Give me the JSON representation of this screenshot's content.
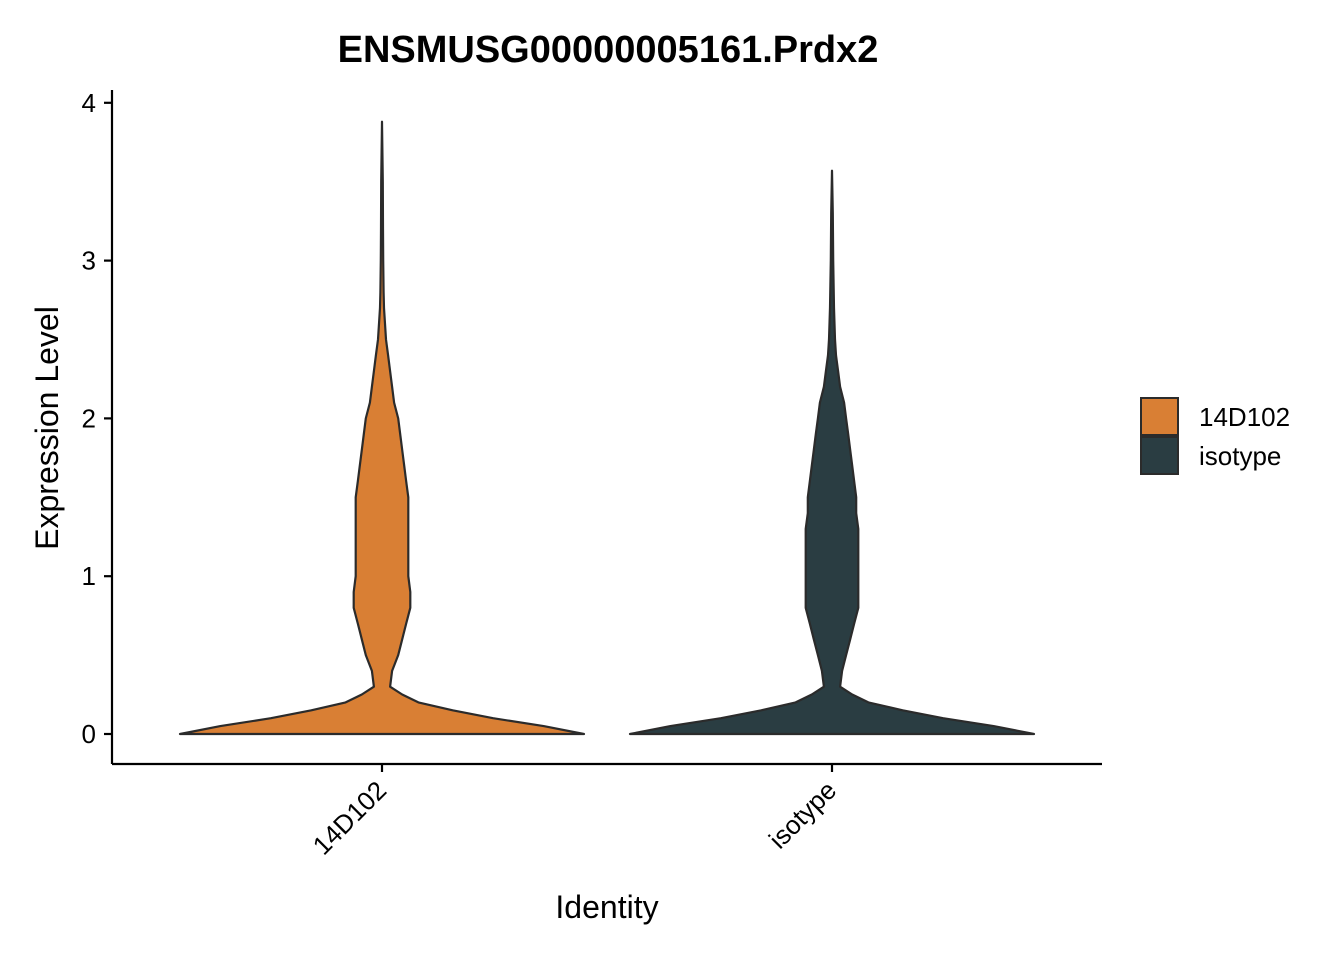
{
  "chart_data": {
    "type": "violin",
    "title": "ENSMUSG00000005161.Prdx2",
    "xlabel": "Identity",
    "ylabel": "Expression Level",
    "categories": [
      "14D102",
      "isotype"
    ],
    "ylim": [
      -0.2,
      4.05
    ],
    "yticks": [
      0,
      1,
      2,
      3,
      4
    ],
    "grid": false,
    "legend": {
      "placement": "right",
      "entries": [
        "14D102",
        "isotype"
      ]
    },
    "series": [
      {
        "name": "14D102",
        "color": "#D97F34",
        "max": 3.88,
        "density_profile": [
          [
            0.0,
            1.0
          ],
          [
            0.05,
            0.8
          ],
          [
            0.1,
            0.55
          ],
          [
            0.15,
            0.35
          ],
          [
            0.2,
            0.18
          ],
          [
            0.25,
            0.1
          ],
          [
            0.3,
            0.04
          ],
          [
            0.4,
            0.05
          ],
          [
            0.5,
            0.08
          ],
          [
            0.6,
            0.1
          ],
          [
            0.7,
            0.12
          ],
          [
            0.8,
            0.14
          ],
          [
            0.9,
            0.14
          ],
          [
            1.0,
            0.13
          ],
          [
            1.1,
            0.13
          ],
          [
            1.2,
            0.13
          ],
          [
            1.3,
            0.13
          ],
          [
            1.4,
            0.13
          ],
          [
            1.5,
            0.13
          ],
          [
            1.6,
            0.12
          ],
          [
            1.7,
            0.11
          ],
          [
            1.8,
            0.1
          ],
          [
            1.9,
            0.09
          ],
          [
            2.0,
            0.08
          ],
          [
            2.1,
            0.06
          ],
          [
            2.2,
            0.05
          ],
          [
            2.3,
            0.04
          ],
          [
            2.4,
            0.03
          ],
          [
            2.5,
            0.02
          ],
          [
            2.6,
            0.015
          ],
          [
            2.7,
            0.01
          ],
          [
            2.8,
            0.008
          ],
          [
            3.0,
            0.006
          ],
          [
            3.2,
            0.005
          ],
          [
            3.5,
            0.004
          ],
          [
            3.88,
            0.0
          ]
        ]
      },
      {
        "name": "isotype",
        "color": "#2A3D42",
        "max": 3.57,
        "density_profile": [
          [
            0.0,
            1.0
          ],
          [
            0.05,
            0.8
          ],
          [
            0.1,
            0.55
          ],
          [
            0.15,
            0.35
          ],
          [
            0.2,
            0.18
          ],
          [
            0.25,
            0.1
          ],
          [
            0.3,
            0.04
          ],
          [
            0.4,
            0.05
          ],
          [
            0.5,
            0.07
          ],
          [
            0.6,
            0.09
          ],
          [
            0.7,
            0.11
          ],
          [
            0.8,
            0.13
          ],
          [
            0.9,
            0.13
          ],
          [
            1.0,
            0.13
          ],
          [
            1.1,
            0.13
          ],
          [
            1.2,
            0.13
          ],
          [
            1.3,
            0.13
          ],
          [
            1.4,
            0.12
          ],
          [
            1.5,
            0.12
          ],
          [
            1.6,
            0.11
          ],
          [
            1.7,
            0.1
          ],
          [
            1.8,
            0.09
          ],
          [
            1.9,
            0.08
          ],
          [
            2.0,
            0.07
          ],
          [
            2.1,
            0.06
          ],
          [
            2.2,
            0.04
          ],
          [
            2.3,
            0.03
          ],
          [
            2.4,
            0.02
          ],
          [
            2.5,
            0.015
          ],
          [
            2.7,
            0.01
          ],
          [
            3.0,
            0.006
          ],
          [
            3.3,
            0.004
          ],
          [
            3.57,
            0.0
          ]
        ]
      }
    ]
  }
}
